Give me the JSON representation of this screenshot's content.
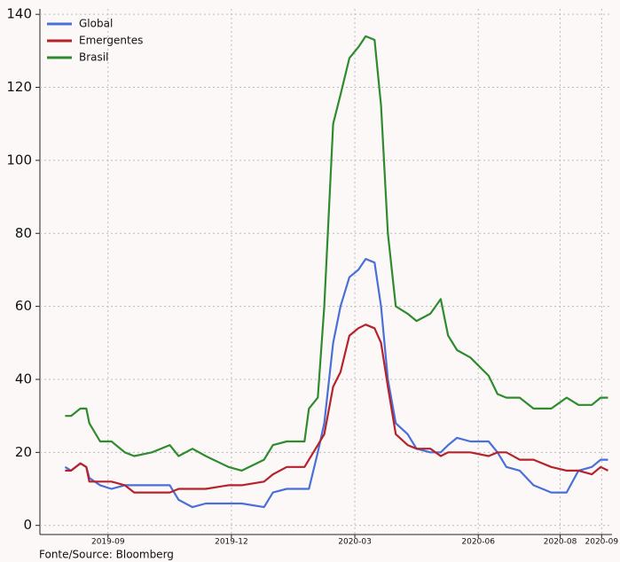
{
  "chart_data": {
    "type": "line",
    "source": "Fonte/Source: Bloomberg",
    "x": [
      2019.58,
      2019.592,
      2019.611,
      2019.623,
      2019.629,
      2019.651,
      2019.674,
      2019.701,
      2019.72,
      2019.756,
      2019.792,
      2019.81,
      2019.838,
      2019.865,
      2019.911,
      2019.938,
      2019.983,
      2020.001,
      2020.029,
      2020.065,
      2020.074,
      2020.092,
      2020.105,
      2020.123,
      2020.138,
      2020.156,
      2020.174,
      2020.189,
      2020.207,
      2020.22,
      2020.234,
      2020.25,
      2020.274,
      2020.292,
      2020.32,
      2020.341,
      2020.356,
      2020.374,
      2020.401,
      2020.438,
      2020.456,
      2020.474,
      2020.501,
      2020.529,
      2020.565,
      2020.596,
      2020.62,
      2020.647,
      2020.665,
      2020.68
    ],
    "series": [
      {
        "name": "Global",
        "color": "#4a6fd8",
        "values": [
          16,
          15,
          17,
          16,
          13,
          11,
          10,
          11,
          11,
          11,
          11,
          7,
          5,
          6,
          6,
          6,
          5,
          9,
          10,
          10,
          10,
          20,
          28,
          50,
          60,
          68,
          70,
          73,
          72,
          60,
          40,
          28,
          25,
          21,
          20,
          20,
          22,
          24,
          23,
          23,
          20,
          16,
          15,
          11,
          9,
          9,
          15,
          16,
          18,
          18
        ]
      },
      {
        "name": "Emergentes",
        "color": "#b5222a",
        "values": [
          15,
          15,
          17,
          16,
          12,
          12,
          12,
          11,
          9,
          9,
          9,
          10,
          10,
          10,
          11,
          11,
          12,
          14,
          16,
          16,
          18,
          22,
          25,
          38,
          42,
          52,
          54,
          55,
          54,
          50,
          38,
          25,
          22,
          21,
          21,
          19,
          20,
          20,
          20,
          19,
          20,
          20,
          18,
          18,
          16,
          15,
          15,
          14,
          16,
          15
        ]
      },
      {
        "name": "Brasil",
        "color": "#2e8b2e",
        "values": [
          30,
          30,
          32,
          32,
          28,
          23,
          23,
          20,
          19,
          20,
          22,
          19,
          21,
          19,
          16,
          15,
          18,
          22,
          23,
          23,
          32,
          35,
          60,
          110,
          118,
          128,
          131,
          134,
          133,
          115,
          80,
          60,
          58,
          56,
          58,
          62,
          52,
          48,
          46,
          41,
          36,
          35,
          35,
          32,
          32,
          35,
          33,
          33,
          35,
          35
        ]
      }
    ],
    "xlim": [
      2019.529,
      2020.688
    ],
    "xticks": [
      {
        "value": 2019.667,
        "label": "2019-09"
      },
      {
        "value": 2019.917,
        "label": "2019-12"
      },
      {
        "value": 2020.167,
        "label": "2020-03"
      },
      {
        "value": 2020.417,
        "label": "2020-06"
      },
      {
        "value": 2020.583,
        "label": "2020-08"
      },
      {
        "value": 2020.667,
        "label": "2020-09"
      }
    ],
    "ylim": [
      -2.5,
      141.5
    ],
    "yticks": [
      0,
      20,
      40,
      60,
      80,
      100,
      120,
      140
    ],
    "grid": true,
    "legend": "upper-left"
  }
}
